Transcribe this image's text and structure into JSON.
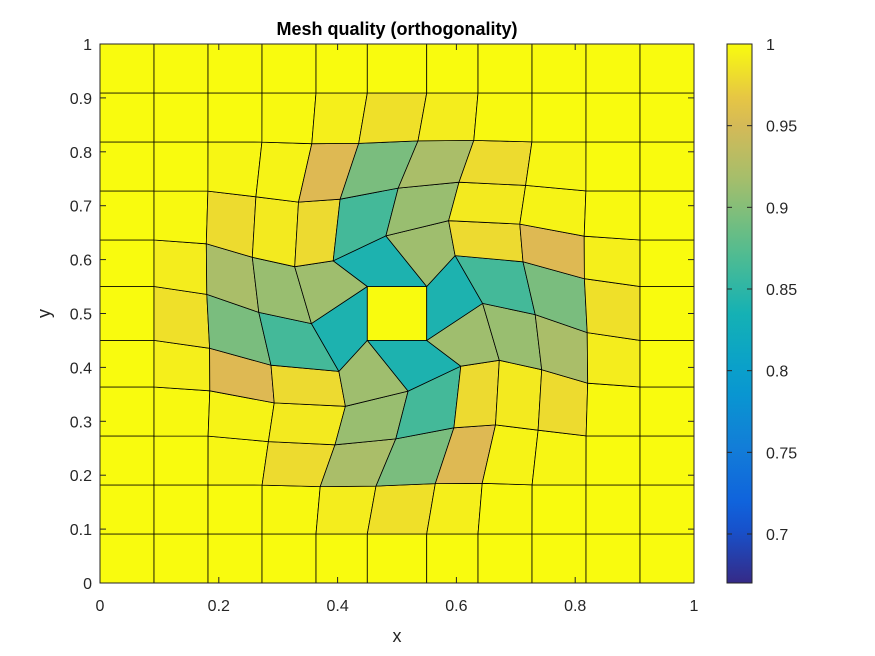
{
  "chart_data": {
    "type": "heatmap",
    "title": "Mesh quality (orthogonality)",
    "xlabel": "x",
    "ylabel": "y",
    "xlim": [
      0,
      1
    ],
    "ylim": [
      0,
      1
    ],
    "x_ticks": [
      "0",
      "0.2",
      "0.4",
      "0.6",
      "0.8",
      "1"
    ],
    "y_ticks": [
      "0",
      "0.1",
      "0.2",
      "0.3",
      "0.4",
      "0.5",
      "0.6",
      "0.7",
      "0.8",
      "0.9",
      "1"
    ],
    "colorbar": {
      "min": 0.67,
      "max": 1.0,
      "ticks": [
        "0.7",
        "0.75",
        "0.8",
        "0.85",
        "0.9",
        "0.95",
        "1"
      ],
      "colormap": "parula"
    },
    "mesh": {
      "nx": 11,
      "ny": 11,
      "hole": [
        0.45,
        0.55
      ],
      "twist_max_rad": 0.8,
      "twist_radius": 0.33
    }
  }
}
